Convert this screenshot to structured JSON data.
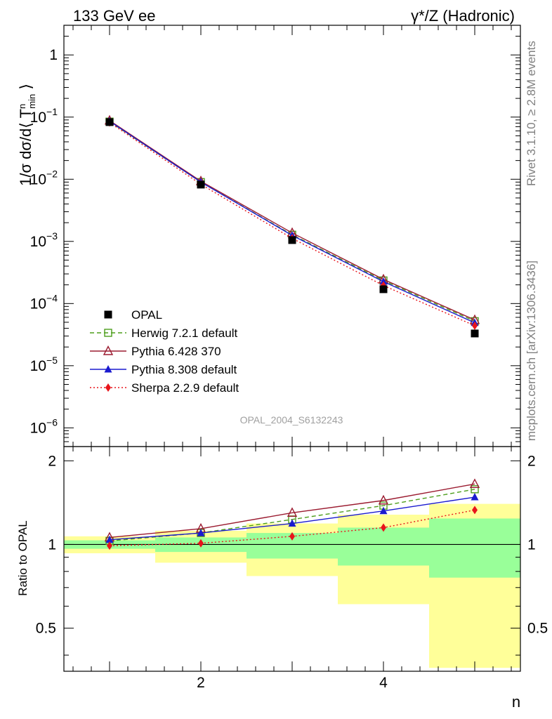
{
  "header": {
    "left": "133 GeV ee",
    "right": "γ*/Z (Hadronic)"
  },
  "side_labels": {
    "rivet": "Rivet 3.1.10, ≥ 2.8M events",
    "mcplots": "mcplots.cern.ch [arXiv:1306.3436]"
  },
  "analysis_label": "OPAL_2004_S6132243",
  "colors": {
    "data": "#000000",
    "herwig": "#4d9e1c",
    "pythia6": "#9b1b30",
    "pythia8": "#1a1acf",
    "sherpa": "#e8151b",
    "band_outer": "#ffff99",
    "band_inner": "#99ff99"
  },
  "chart_data": [
    {
      "type": "line",
      "ylabel": "1/σ dσ/d⟨ T^n_min ⟩",
      "yscale": "log",
      "xlim": [
        0.5,
        5.5
      ],
      "ylim": [
        5e-07,
        3
      ],
      "x": [
        1,
        2,
        3,
        4,
        5
      ],
      "ytick_labels": [
        "10^-6",
        "10^-5",
        "10^-4",
        "10^-3",
        "10^-2",
        "10^-1",
        "1"
      ],
      "legend_position": "bottom-left",
      "series": [
        {
          "name": "OPAL",
          "key": "data",
          "marker": "square-filled",
          "values": [
            0.083,
            0.0082,
            0.00105,
            0.00017,
            3.3e-05
          ]
        },
        {
          "name": "Herwig 7.2.1 default",
          "key": "herwig",
          "marker": "square-open",
          "line": "dashed",
          "values": [
            0.0845,
            0.009,
            0.00128,
            0.000235,
            5.2e-05
          ]
        },
        {
          "name": "Pythia 6.428 370",
          "key": "pythia6",
          "marker": "triangle-open",
          "line": "solid",
          "values": [
            0.088,
            0.0093,
            0.00137,
            0.000245,
            5.45e-05
          ]
        },
        {
          "name": "Pythia 8.308 default",
          "key": "pythia8",
          "marker": "triangle-filled",
          "line": "solid",
          "values": [
            0.086,
            0.009,
            0.00125,
            0.000225,
            4.9e-05
          ]
        },
        {
          "name": "Sherpa 2.2.9 default",
          "key": "sherpa",
          "marker": "diamond-filled",
          "line": "dotted",
          "values": [
            0.082,
            0.0083,
            0.00112,
            0.000195,
            4.4e-05
          ]
        }
      ]
    },
    {
      "type": "line",
      "ylabel": "Ratio to OPAL",
      "xlabel": "n",
      "xlim": [
        0.5,
        5.5
      ],
      "ylim": [
        0.35,
        2.25
      ],
      "x": [
        1,
        2,
        3,
        4,
        5
      ],
      "xtick_labels": [
        "2",
        "4"
      ],
      "ytick_labels": [
        "0.5",
        "1",
        "2"
      ],
      "bands": [
        {
          "x_range": [
            0.5,
            1.5
          ],
          "outer": [
            0.93,
            1.07
          ],
          "inner": [
            0.965,
            1.035
          ]
        },
        {
          "x_range": [
            1.5,
            2.5
          ],
          "outer": [
            0.86,
            1.12
          ],
          "inner": [
            0.94,
            1.06
          ]
        },
        {
          "x_range": [
            2.5,
            3.5
          ],
          "outer": [
            0.77,
            1.19
          ],
          "inner": [
            0.89,
            1.1
          ]
        },
        {
          "x_range": [
            3.5,
            4.5
          ],
          "outer": [
            0.61,
            1.28
          ],
          "inner": [
            0.84,
            1.15
          ]
        },
        {
          "x_range": [
            4.5,
            5.5
          ],
          "outer": [
            0.36,
            1.4
          ],
          "inner": [
            0.76,
            1.24
          ]
        }
      ],
      "series": [
        {
          "key": "herwig",
          "marker": "square-open",
          "line": "dashed",
          "values": [
            1.03,
            1.1,
            1.23,
            1.38,
            1.58
          ]
        },
        {
          "key": "pythia6",
          "marker": "triangle-open",
          "line": "solid",
          "values": [
            1.06,
            1.14,
            1.3,
            1.44,
            1.65
          ]
        },
        {
          "key": "pythia8",
          "marker": "triangle-filled",
          "line": "solid",
          "values": [
            1.04,
            1.1,
            1.19,
            1.32,
            1.48
          ]
        },
        {
          "key": "sherpa",
          "marker": "diamond-filled",
          "line": "dotted",
          "values": [
            0.99,
            1.01,
            1.07,
            1.15,
            1.33
          ]
        }
      ]
    }
  ]
}
